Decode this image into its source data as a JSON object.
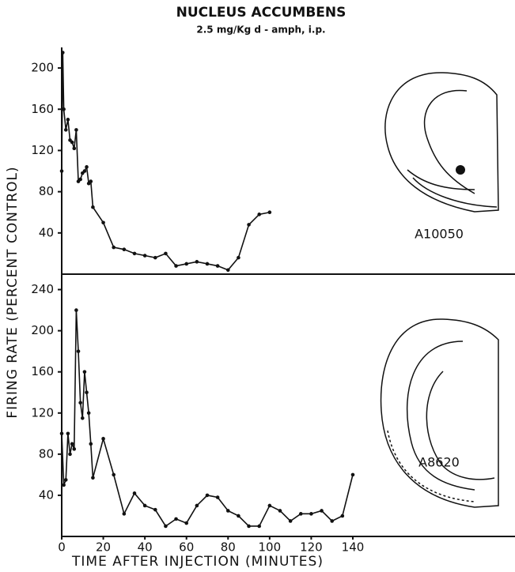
{
  "title": "NUCLEUS ACCUMBENS",
  "subtitle": "2.5 mg/Kg d - amph, i.p.",
  "x_label": "TIME AFTER INJECTION (MINUTES)",
  "y_label": "FIRING RATE (PERCENT CONTROL)",
  "chart_data": [
    {
      "type": "line",
      "color": "#111",
      "annotation": "A10050",
      "x": [
        0,
        0.5,
        1,
        2,
        3,
        4,
        5,
        6,
        7,
        8,
        9,
        10,
        11,
        12,
        13,
        14,
        15,
        20,
        25,
        30,
        35,
        40,
        45,
        50,
        55,
        60,
        65,
        70,
        75,
        80,
        85,
        90,
        95,
        100
      ],
      "values": [
        100,
        215,
        160,
        140,
        150,
        130,
        128,
        122,
        140,
        90,
        92,
        98,
        100,
        104,
        88,
        90,
        65,
        50,
        26,
        24,
        20,
        18,
        16,
        20,
        8,
        10,
        12,
        10,
        8,
        4,
        16,
        48,
        58,
        60
      ],
      "xlim": [
        0,
        218
      ],
      "ylim": [
        0,
        220
      ],
      "yticks": [
        40,
        80,
        120,
        160,
        200
      ]
    },
    {
      "type": "line",
      "color": "#111",
      "annotation": "A8620",
      "x": [
        0,
        1,
        2,
        3,
        4,
        5,
        6,
        7,
        8,
        9,
        10,
        11,
        12,
        13,
        14,
        15,
        20,
        25,
        30,
        35,
        40,
        45,
        50,
        55,
        60,
        65,
        70,
        75,
        80,
        85,
        90,
        95,
        100,
        105,
        110,
        115,
        120,
        125,
        130,
        135,
        140
      ],
      "values": [
        100,
        50,
        55,
        100,
        80,
        90,
        85,
        220,
        180,
        130,
        115,
        160,
        140,
        120,
        90,
        57,
        95,
        60,
        22,
        42,
        30,
        26,
        10,
        17,
        13,
        30,
        40,
        38,
        25,
        20,
        10,
        10,
        30,
        25,
        15,
        22,
        22,
        25,
        15,
        20,
        60
      ],
      "xlim": [
        0,
        218
      ],
      "ylim": [
        0,
        255
      ],
      "yticks": [
        40,
        80,
        120,
        160,
        200,
        240
      ],
      "xticks": [
        0,
        20,
        40,
        60,
        80,
        100,
        120,
        140
      ]
    }
  ]
}
